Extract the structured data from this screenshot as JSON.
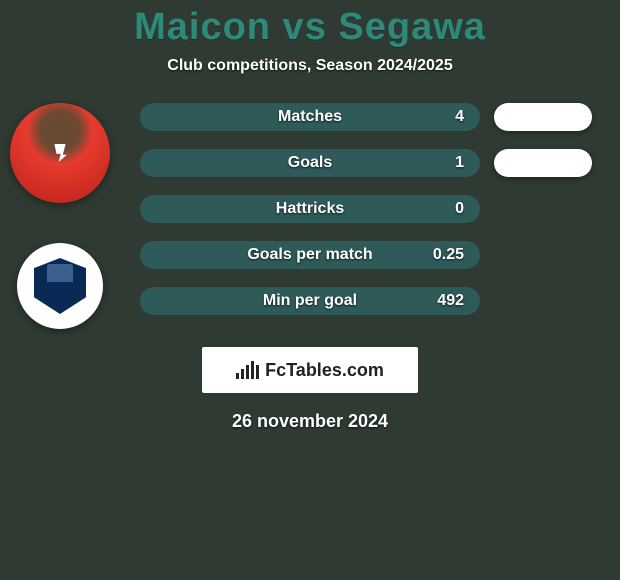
{
  "background_color": "#2e3a32",
  "header": {
    "title": "Maicon vs Segawa",
    "title_color": "#2d8a7a",
    "subtitle": "Club competitions, Season 2024/2025",
    "subtitle_color": "#ffffff"
  },
  "avatars": {
    "player": {
      "name": "player-avatar"
    },
    "club": {
      "name": "club-crest",
      "crest_color": "#0a2a56"
    }
  },
  "comparison": {
    "type": "bar",
    "left_pill_bg": "#2f5a5a",
    "left_pill_width": 340,
    "text_color": "#ffffff",
    "right_blob_bg": "#ffffff",
    "rows": [
      {
        "label": "Matches",
        "value": "4",
        "right_blob_width": 98
      },
      {
        "label": "Goals",
        "value": "1",
        "right_blob_width": 98
      },
      {
        "label": "Hattricks",
        "value": "0",
        "right_blob_width": 0
      },
      {
        "label": "Goals per match",
        "value": "0.25",
        "right_blob_width": 0
      },
      {
        "label": "Min per goal",
        "value": "492",
        "right_blob_width": 0
      }
    ]
  },
  "branding": {
    "text": "FcTables.com",
    "bg": "#ffffff",
    "color": "#222222",
    "bars": [
      6,
      10,
      14,
      18,
      14
    ]
  },
  "footer": {
    "date": "26 november 2024",
    "color": "#ffffff"
  }
}
